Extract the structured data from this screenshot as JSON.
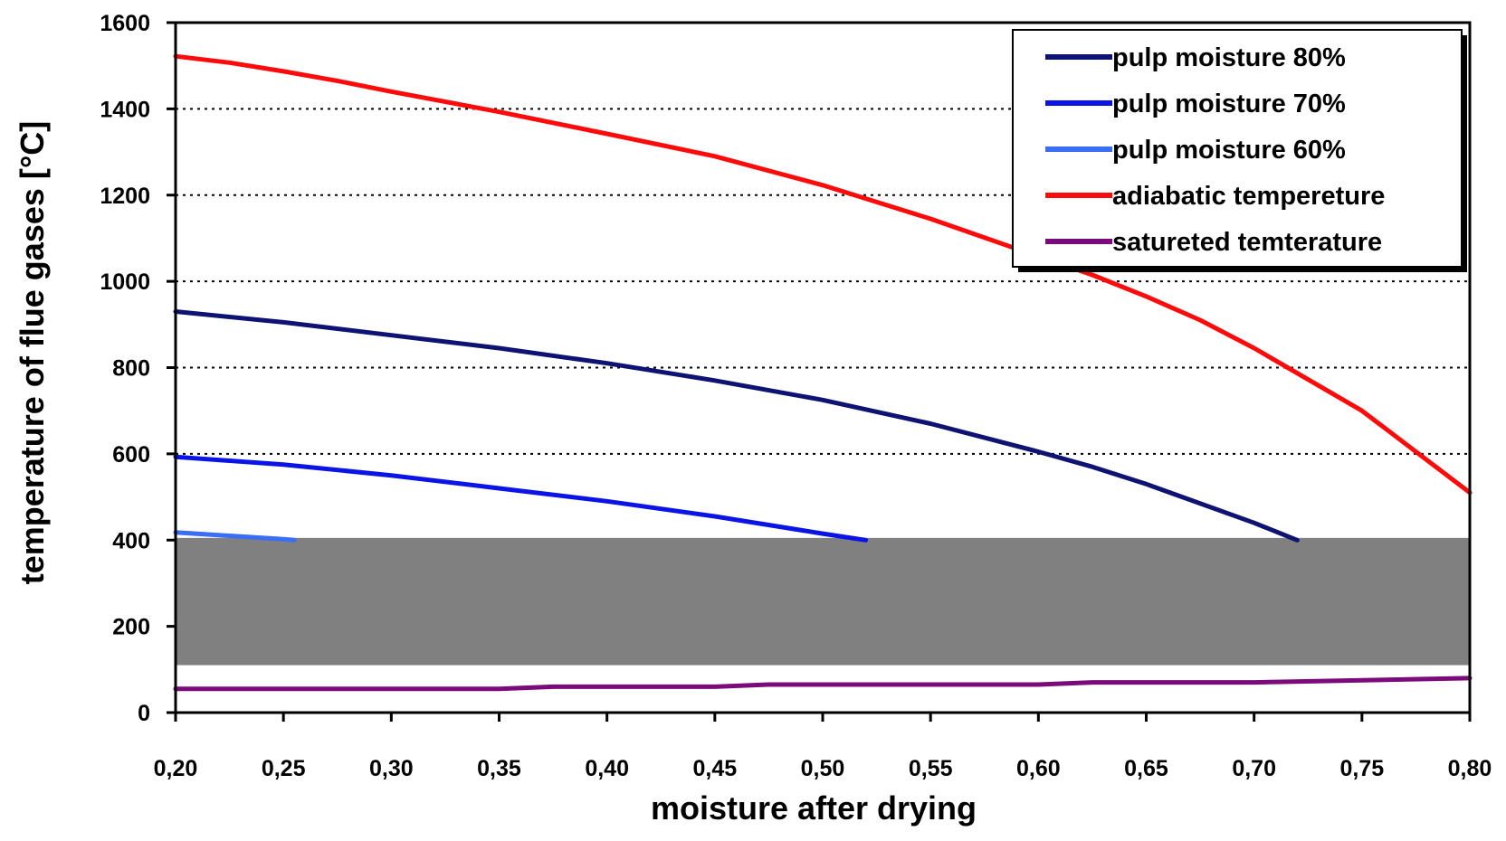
{
  "chart_data": {
    "type": "line",
    "title": "",
    "xlabel": "moisture after drying",
    "ylabel": "temperature of flue gases [°C]",
    "xlim": [
      0.2,
      0.8
    ],
    "ylim": [
      0,
      1600
    ],
    "xticks": [
      "0,20",
      "0,25",
      "0,30",
      "0,35",
      "0,40",
      "0,45",
      "0,50",
      "0,55",
      "0,60",
      "0,65",
      "0,70",
      "0,75",
      "0,80"
    ],
    "yticks": [
      "0",
      "200",
      "400",
      "600",
      "800",
      "1000",
      "1200",
      "1400",
      "1600"
    ],
    "grid": "horizontal dotted at 600, 800, 1000, 1200, 1400",
    "legend_position": "top-right",
    "shaded_band": {
      "y_range": [
        110,
        405
      ],
      "color": "#808080"
    },
    "series": [
      {
        "name": "pulp moisture 80%",
        "color": "#0d1273",
        "x": [
          0.2,
          0.25,
          0.3,
          0.35,
          0.4,
          0.45,
          0.5,
          0.55,
          0.6,
          0.625,
          0.65,
          0.7,
          0.72
        ],
        "y": [
          930,
          905,
          875,
          845,
          810,
          770,
          725,
          670,
          605,
          570,
          530,
          440,
          400
        ]
      },
      {
        "name": "pulp moisture 70%",
        "color": "#0a14e6",
        "x": [
          0.2,
          0.25,
          0.3,
          0.35,
          0.4,
          0.45,
          0.5,
          0.52
        ],
        "y": [
          593,
          575,
          550,
          520,
          490,
          455,
          415,
          400
        ]
      },
      {
        "name": "pulp moisture 60%",
        "color": "#3a6ef5",
        "x": [
          0.2,
          0.25,
          0.255
        ],
        "y": [
          418,
          402,
          400
        ]
      },
      {
        "name": "adiabatic tempereture",
        "color": "#ff0a0a",
        "x": [
          0.2,
          0.225,
          0.25,
          0.275,
          0.3,
          0.35,
          0.4,
          0.45,
          0.5,
          0.55,
          0.6,
          0.625,
          0.65,
          0.675,
          0.7,
          0.75,
          0.8
        ],
        "y": [
          1522,
          1507,
          1487,
          1465,
          1440,
          1393,
          1342,
          1290,
          1223,
          1145,
          1058,
          1015,
          965,
          910,
          845,
          700,
          510
        ]
      },
      {
        "name": "satureted temterature",
        "color": "#7b0a7b",
        "x": [
          0.2,
          0.35,
          0.375,
          0.45,
          0.475,
          0.6,
          0.625,
          0.7,
          0.8
        ],
        "y": [
          55,
          55,
          60,
          60,
          65,
          65,
          70,
          70,
          80
        ]
      }
    ]
  }
}
